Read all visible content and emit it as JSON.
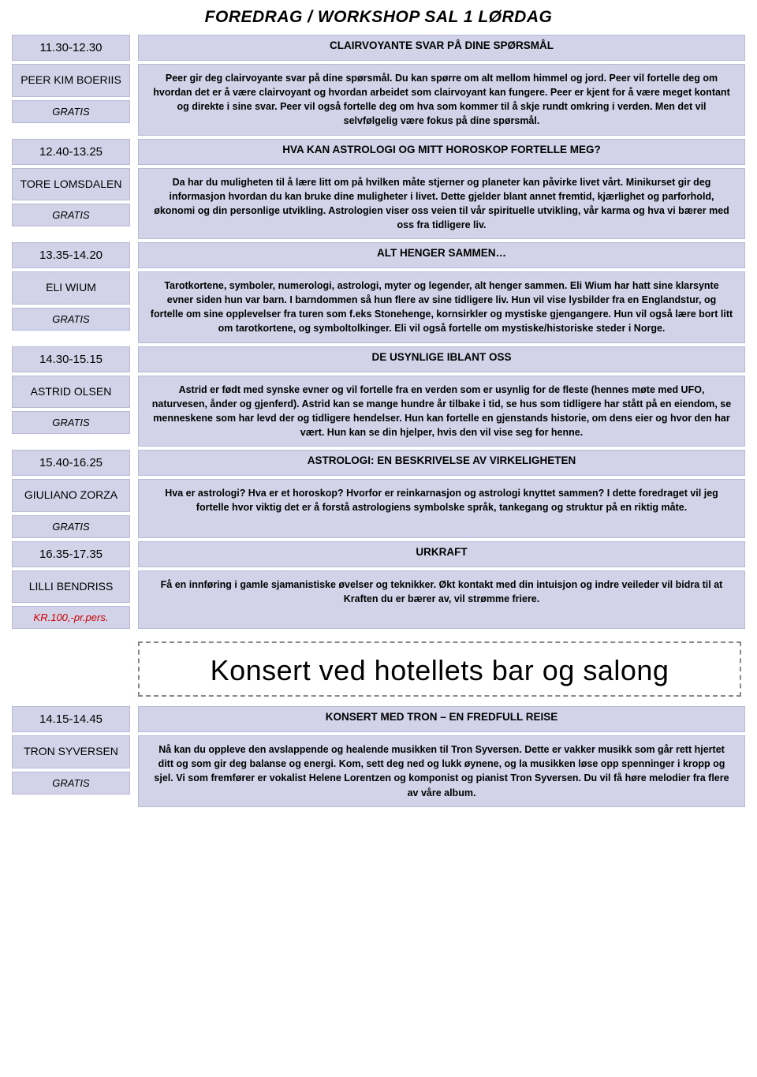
{
  "page_title": "FOREDRAG / WORKSHOP SAL 1 LØRDAG",
  "concert_banner": "Konsert ved hotellets bar og salong",
  "colors": {
    "cell_bg": "#d2d2e8",
    "cell_border": "#b8b8d8",
    "paid_price": "#cc0000",
    "background": "#ffffff",
    "text": "#000000"
  },
  "sessions": [
    {
      "time": "11.30-12.30",
      "speaker": "PEER KIM BOERIIS",
      "price": "GRATIS",
      "price_paid": false,
      "title": "CLAIRVOYANTE SVAR PÅ DINE SPØRSMÅL",
      "body": "Peer gir deg clairvoyante svar på dine spørsmål. Du kan spørre om alt mellom himmel og jord. Peer vil fortelle deg om hvordan det er å være clairvoyant og hvordan arbeidet som clairvoyant kan fungere. Peer er kjent for å være meget kontant og direkte i sine svar. Peer vil også fortelle deg om hva som kommer til å skje rundt omkring i verden. Men det vil selvfølgelig være fokus på dine spørsmål."
    },
    {
      "time": "12.40-13.25",
      "speaker": "TORE LOMSDALEN",
      "price": "GRATIS",
      "price_paid": false,
      "title": "HVA KAN ASTROLOGI OG MITT HOROSKOP FORTELLE MEG?",
      "body": "Da har du muligheten til å lære litt om på hvilken måte stjerner og planeter kan påvirke livet vårt. Minikurset gir deg informasjon hvordan du kan bruke dine muligheter i livet. Dette gjelder blant annet fremtid, kjærlighet og parforhold, økonomi og din personlige utvikling. Astrologien viser oss veien til vår spirituelle utvikling, vår karma og hva vi bærer med oss fra tidligere liv."
    },
    {
      "time": "13.35-14.20",
      "speaker": "ELI WIUM",
      "price": "GRATIS",
      "price_paid": false,
      "title": "ALT HENGER SAMMEN…",
      "body": "Tarotkortene, symboler, numerologi, astrologi, myter og legender, alt henger sammen. Eli Wium har hatt sine klarsynte evner siden hun var barn. I barndommen så hun flere av sine tidligere liv. Hun vil vise lysbilder fra en Englandstur, og fortelle om sine opplevelser fra turen som f.eks Stonehenge, kornsirkler og mystiske gjengangere. Hun vil også lære bort litt om tarotkortene, og symboltolkinger. Eli vil også fortelle om mystiske/historiske steder i Norge."
    },
    {
      "time": "14.30-15.15",
      "speaker": "ASTRID OLSEN",
      "price": "GRATIS",
      "price_paid": false,
      "title": "DE USYNLIGE IBLANT OSS",
      "body": "Astrid er født med synske evner og vil fortelle fra en verden som er usynlig for de fleste (hennes møte med UFO, naturvesen, ånder og gjenferd). Astrid kan se mange hundre år tilbake i tid, se hus som tidligere har stått på en eiendom, se menneskene som har levd der og tidligere hendelser. Hun kan fortelle en gjenstands historie, om dens eier og hvor den har vært. Hun kan se din hjelper, hvis den vil vise seg for henne."
    },
    {
      "time": "15.40-16.25",
      "speaker": "GIULIANO ZORZA",
      "price": "GRATIS",
      "price_paid": false,
      "title": "ASTROLOGI: EN BESKRIVELSE AV VIRKELIGHETEN",
      "body": "Hva er astrologi? Hva er et horoskop? Hvorfor er reinkarnasjon og astrologi knyttet sammen? I dette foredraget vil jeg fortelle hvor viktig det er å forstå astrologiens symbolske språk, tankegang og struktur på en riktig måte."
    },
    {
      "time": "16.35-17.35",
      "speaker": "LILLI BENDRISS",
      "price": "KR.100,-pr.pers.",
      "price_paid": true,
      "title": "URKRAFT",
      "body": "Få en innføring i gamle sjamanistiske øvelser og teknikker. Økt kontakt med din intuisjon og indre veileder vil bidra til at Kraften du er bærer av, vil strømme friere."
    }
  ],
  "concert_session": {
    "time": "14.15-14.45",
    "speaker": "TRON SYVERSEN",
    "price": "GRATIS",
    "price_paid": false,
    "title": "KONSERT MED TRON – EN FREDFULL REISE",
    "body": "Nå kan du oppleve den avslappende og healende musikken til Tron Syversen. Dette er vakker musikk som går rett hjertet ditt og som gir deg balanse og energi. Kom, sett deg ned og lukk øynene, og la musikken løse opp spenninger i kropp og sjel. Vi som fremfører er vokalist Helene Lorentzen og komponist og  pianist Tron Syversen. Du vil få høre melodier fra flere av våre album."
  }
}
